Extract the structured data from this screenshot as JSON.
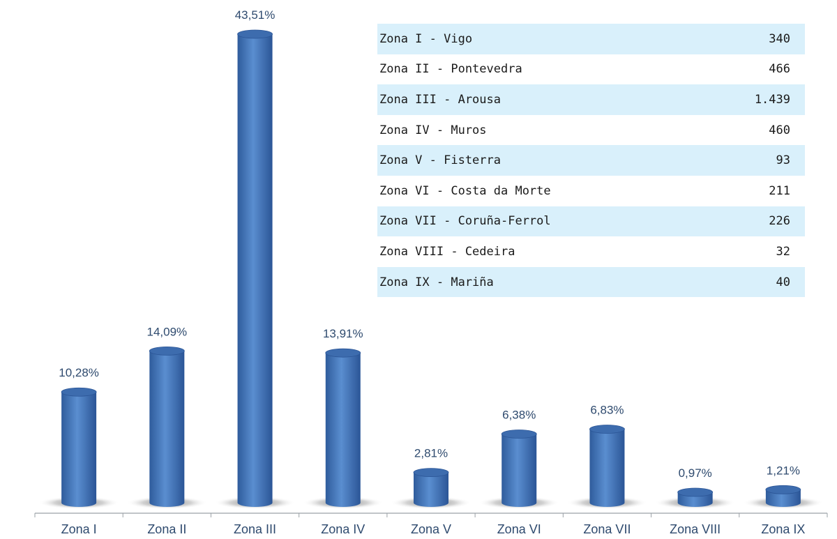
{
  "chart_data": {
    "type": "bar",
    "categories": [
      "Zona I",
      "Zona II",
      "Zona III",
      "Zona IV",
      "Zona V",
      "Zona VI",
      "Zona VII",
      "Zona VIII",
      "Zona IX"
    ],
    "values": [
      10.28,
      14.09,
      43.51,
      13.91,
      2.81,
      6.38,
      6.83,
      0.97,
      1.21
    ],
    "value_labels": [
      "10,28%",
      "14,09%",
      "43,51%",
      "13,91%",
      "2,81%",
      "6,38%",
      "6,83%",
      "0,97%",
      "1,21%"
    ],
    "bar_color": "#4f7fc0",
    "grid": false,
    "table": {
      "rows": [
        {
          "label": "Zona I - Vigo",
          "value": "340"
        },
        {
          "label": "Zona II - Pontevedra",
          "value": "466"
        },
        {
          "label": "Zona III - Arousa",
          "value": "1.439"
        },
        {
          "label": "Zona IV - Muros",
          "value": "460"
        },
        {
          "label": "Zona V - Fisterra",
          "value": "93"
        },
        {
          "label": "Zona VI - Costa da Morte",
          "value": "211"
        },
        {
          "label": "Zona VII - Coruña-Ferrol",
          "value": "226"
        },
        {
          "label": "Zona VIII - Cedeira",
          "value": "32"
        },
        {
          "label": "Zona IX - Mariña",
          "value": "40"
        }
      ]
    }
  }
}
